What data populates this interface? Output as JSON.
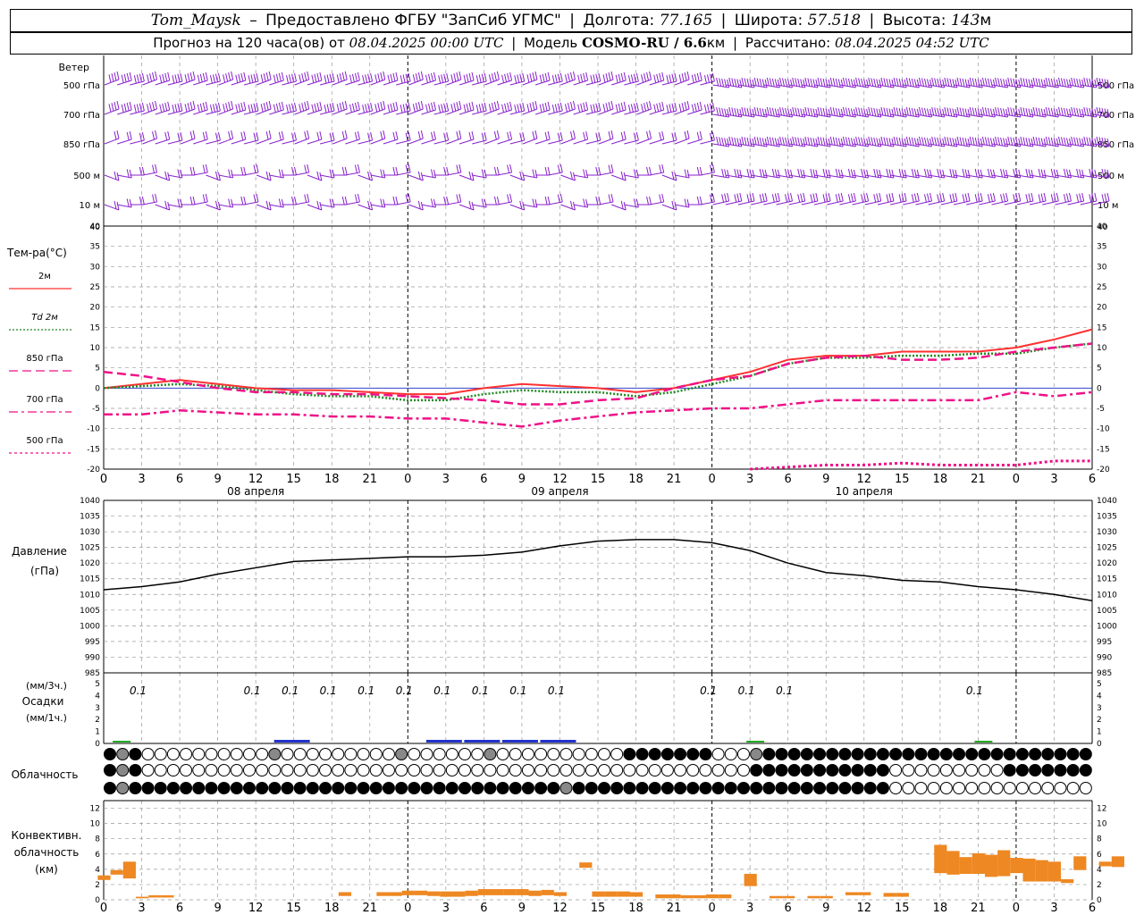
{
  "header": {
    "station": "Tom_Maysk",
    "dash": "–",
    "provider": "Предоставлено ФГБУ \"ЗапСиб УГМС\"",
    "lon_label": "Долгота:",
    "lon": "77.165",
    "lat_label": "Широта:",
    "lat": "57.518",
    "alt_label": "Высота:",
    "alt": "143",
    "alt_unit": "м",
    "forecast_prefix": "Прогноз на 120 часа(ов) от",
    "forecast_start": "08.04.2025 00:00 UTC",
    "model_label": "Модель",
    "model": "COSMO-RU / 6.6",
    "model_unit": "км",
    "calc_label": "Рассчитано:",
    "calc_time": "08.04.2025 04:52 UTC"
  },
  "colors": {
    "wind": "#8822cc",
    "t2m": "#ff3030",
    "td2m": "#228822",
    "t850": "#ee1188",
    "t700": "#ee1188",
    "t500": "#ee1188",
    "pressure": "#000000",
    "precip_3h": "#2233cc",
    "precip_1h": "#22aa22",
    "convective": "#ee8822",
    "grid": "#999999",
    "zero_line": "#3344cc"
  },
  "time_axis": {
    "hour_labels": [
      "0",
      "3",
      "6",
      "9",
      "12",
      "15",
      "18",
      "21",
      "0",
      "3",
      "6",
      "9",
      "12",
      "15",
      "18",
      "21",
      "0",
      "3",
      "6",
      "9",
      "12",
      "15",
      "18",
      "21",
      "0",
      "3",
      "6"
    ],
    "day_labels": [
      "08 апреля",
      "09 апреля",
      "10 апреля"
    ]
  },
  "chart_data": [
    {
      "type": "wind_barbs",
      "title": "Ветер",
      "levels": [
        "500 гПа",
        "700 гПа",
        "850 гПа",
        "500 м",
        "10 м"
      ],
      "scale_end_label": "40"
    },
    {
      "type": "line",
      "ylabel": "Тем-ра(°C)",
      "ylim": [
        -20,
        40
      ],
      "yticks": [
        40,
        35,
        30,
        25,
        20,
        15,
        10,
        5,
        0,
        -5,
        -10,
        -15,
        -20
      ],
      "x_hours": [
        0,
        3,
        6,
        9,
        12,
        15,
        18,
        21,
        24,
        27,
        30,
        33,
        36,
        39,
        42,
        45,
        48,
        51,
        54,
        57,
        60,
        63,
        66,
        69,
        72,
        75,
        78
      ],
      "series": [
        {
          "name": "2м",
          "style": "solid",
          "values": [
            0,
            1,
            2,
            1,
            0,
            -0.5,
            -0.5,
            -1,
            -1.5,
            -1.5,
            0,
            1,
            0.5,
            0,
            -1,
            0,
            2,
            4,
            7,
            8,
            8,
            9,
            9,
            9,
            10,
            12,
            14.5
          ]
        },
        {
          "name": "Td 2м",
          "style": "dotted",
          "values": [
            0,
            0.5,
            1,
            0.5,
            -0.5,
            -1.5,
            -2,
            -2,
            -3,
            -3,
            -1.5,
            -0.5,
            -1,
            -1,
            -2,
            -1,
            1,
            3,
            6,
            7.5,
            7.5,
            8,
            8,
            8.5,
            8.5,
            10,
            11
          ]
        },
        {
          "name": "850 гПа",
          "style": "dashed",
          "values": [
            4,
            3,
            1.5,
            0,
            -1,
            -1,
            -1.5,
            -1.5,
            -2,
            -2.5,
            -3,
            -4,
            -4,
            -3,
            -2.5,
            0,
            2,
            3,
            6,
            7.5,
            8,
            7,
            7,
            7.5,
            9,
            10,
            11
          ]
        },
        {
          "name": "700 гПа",
          "style": "dashdot",
          "values": [
            -6.5,
            -6.5,
            -5.5,
            -6,
            -6.5,
            -6.5,
            -7,
            -7,
            -7.5,
            -7.5,
            -8.5,
            -9.5,
            -8,
            -7,
            -6,
            -5.5,
            -5,
            -5,
            -4,
            -3,
            -3,
            -3,
            -3,
            -3,
            -1,
            -2,
            -1
          ]
        },
        {
          "name": "500 гПа",
          "style": "dotted",
          "x_hours": [
            51,
            54,
            57,
            60,
            63,
            66,
            69,
            72,
            75,
            78
          ],
          "values": [
            -20,
            -19.5,
            -19,
            -19,
            -18.5,
            -19,
            -19,
            -19,
            -18,
            -18
          ]
        }
      ]
    },
    {
      "type": "line",
      "ylabel": "Давление",
      "yunit": "(гПа)",
      "ylim": [
        985,
        1040
      ],
      "yticks": [
        1040,
        1035,
        1030,
        1025,
        1020,
        1015,
        1010,
        1005,
        1000,
        995,
        990,
        985
      ],
      "x_hours": [
        0,
        3,
        6,
        9,
        12,
        15,
        18,
        21,
        24,
        27,
        30,
        33,
        36,
        39,
        42,
        45,
        48,
        51,
        54,
        57,
        60,
        63,
        66,
        69,
        72,
        75,
        78
      ],
      "series": [
        {
          "name": "Давление",
          "values": [
            1011.5,
            1012.5,
            1014,
            1016.5,
            1018.5,
            1020.5,
            1021,
            1021.5,
            1022,
            1022,
            1022.5,
            1023.5,
            1025.5,
            1027,
            1027.5,
            1027.5,
            1026.5,
            1024,
            1020,
            1017,
            1016,
            1014.5,
            1014,
            1012.5,
            1011.5,
            1010,
            1008
          ]
        }
      ]
    },
    {
      "type": "bar",
      "ylabel_3h": "(мм/3ч.)",
      "ylabel": "Осадки",
      "ylabel_1h": "(мм/1ч.)",
      "ylim": [
        0,
        5
      ],
      "yticks": [
        5,
        4,
        3,
        2,
        1,
        0
      ],
      "value_labels": [
        {
          "hour": 3,
          "text": "0.1"
        },
        {
          "hour": 12,
          "text": "0.1"
        },
        {
          "hour": 15,
          "text": "0.1"
        },
        {
          "hour": 18,
          "text": "0.1"
        },
        {
          "hour": 21,
          "text": "0.1"
        },
        {
          "hour": 24,
          "text": "0.1"
        },
        {
          "hour": 27,
          "text": "0.1"
        },
        {
          "hour": 30,
          "text": "0.1"
        },
        {
          "hour": 33,
          "text": "0.1"
        },
        {
          "hour": 36,
          "text": "0.1"
        },
        {
          "hour": 48,
          "text": "0.1"
        },
        {
          "hour": 51,
          "text": "0.1"
        },
        {
          "hour": 54,
          "text": "0.1"
        },
        {
          "hour": 69,
          "text": "0.1"
        }
      ],
      "series": [
        {
          "name": "3ч",
          "hours": [
            15,
            27,
            30,
            33,
            36
          ],
          "values": [
            0.1,
            0.1,
            0.1,
            0.1,
            0.1
          ]
        },
        {
          "name": "1ч",
          "hours": [
            1,
            51,
            69
          ],
          "values": [
            0.05,
            0.1,
            0.05
          ]
        }
      ]
    },
    {
      "type": "cloud_symbols",
      "title": "Облачность",
      "rows": 3
    },
    {
      "type": "bar",
      "ylabel": [
        "Конвективн.",
        "облачность",
        "(км)"
      ],
      "ylim": [
        0,
        13
      ],
      "yticks": [
        12,
        10,
        8,
        6,
        4,
        2,
        0
      ],
      "bars": [
        {
          "h": 0,
          "lo": 2.6,
          "hi": 3.2
        },
        {
          "h": 1,
          "lo": 3.3,
          "hi": 3.9
        },
        {
          "h": 2,
          "lo": 2.8,
          "hi": 5.0
        },
        {
          "h": 3,
          "lo": 0.2,
          "hi": 0.4
        },
        {
          "h": 4,
          "lo": 0.3,
          "hi": 0.6
        },
        {
          "h": 5,
          "lo": 0.3,
          "hi": 0.6
        },
        {
          "h": 19,
          "lo": 0.5,
          "hi": 1.0
        },
        {
          "h": 22,
          "lo": 0.5,
          "hi": 1.0
        },
        {
          "h": 23,
          "lo": 0.5,
          "hi": 1.0
        },
        {
          "h": 24,
          "lo": 0.6,
          "hi": 1.2
        },
        {
          "h": 25,
          "lo": 0.6,
          "hi": 1.2
        },
        {
          "h": 26,
          "lo": 0.5,
          "hi": 1.1
        },
        {
          "h": 27,
          "lo": 0.4,
          "hi": 1.1
        },
        {
          "h": 28,
          "lo": 0.4,
          "hi": 1.1
        },
        {
          "h": 29,
          "lo": 0.5,
          "hi": 1.2
        },
        {
          "h": 30,
          "lo": 0.6,
          "hi": 1.4
        },
        {
          "h": 31,
          "lo": 0.6,
          "hi": 1.4
        },
        {
          "h": 32,
          "lo": 0.6,
          "hi": 1.4
        },
        {
          "h": 33,
          "lo": 0.6,
          "hi": 1.4
        },
        {
          "h": 34,
          "lo": 0.5,
          "hi": 1.2
        },
        {
          "h": 35,
          "lo": 0.6,
          "hi": 1.3
        },
        {
          "h": 36,
          "lo": 0.5,
          "hi": 1.0
        },
        {
          "h": 38,
          "lo": 4.2,
          "hi": 4.9
        },
        {
          "h": 39,
          "lo": 0.4,
          "hi": 1.1
        },
        {
          "h": 40,
          "lo": 0.4,
          "hi": 1.1
        },
        {
          "h": 41,
          "lo": 0.4,
          "hi": 1.1
        },
        {
          "h": 42,
          "lo": 0.4,
          "hi": 1.0
        },
        {
          "h": 44,
          "lo": 0.2,
          "hi": 0.7
        },
        {
          "h": 45,
          "lo": 0.2,
          "hi": 0.7
        },
        {
          "h": 46,
          "lo": 0.2,
          "hi": 0.6
        },
        {
          "h": 47,
          "lo": 0.2,
          "hi": 0.6
        },
        {
          "h": 48,
          "lo": 0.2,
          "hi": 0.7
        },
        {
          "h": 49,
          "lo": 0.2,
          "hi": 0.7
        },
        {
          "h": 51,
          "lo": 1.8,
          "hi": 3.4
        },
        {
          "h": 53,
          "lo": 0.2,
          "hi": 0.5
        },
        {
          "h": 54,
          "lo": 0.2,
          "hi": 0.5
        },
        {
          "h": 56,
          "lo": 0.2,
          "hi": 0.5
        },
        {
          "h": 57,
          "lo": 0.2,
          "hi": 0.5
        },
        {
          "h": 59,
          "lo": 0.6,
          "hi": 1.0
        },
        {
          "h": 60,
          "lo": 0.6,
          "hi": 1.0
        },
        {
          "h": 62,
          "lo": 0.4,
          "hi": 0.9
        },
        {
          "h": 63,
          "lo": 0.4,
          "hi": 0.9
        },
        {
          "h": 66,
          "lo": 3.5,
          "hi": 7.2
        },
        {
          "h": 67,
          "lo": 3.3,
          "hi": 6.4
        },
        {
          "h": 68,
          "lo": 3.4,
          "hi": 5.6
        },
        {
          "h": 69,
          "lo": 3.4,
          "hi": 6.1
        },
        {
          "h": 70,
          "lo": 3.0,
          "hi": 5.9
        },
        {
          "h": 71,
          "lo": 3.1,
          "hi": 6.5
        },
        {
          "h": 72,
          "lo": 3.5,
          "hi": 5.5
        },
        {
          "h": 73,
          "lo": 2.4,
          "hi": 5.4
        },
        {
          "h": 74,
          "lo": 2.4,
          "hi": 5.2
        },
        {
          "h": 75,
          "lo": 2.4,
          "hi": 5.0
        },
        {
          "h": 76,
          "lo": 2.2,
          "hi": 2.7
        },
        {
          "h": 77,
          "lo": 3.9,
          "hi": 5.7
        },
        {
          "h": 79,
          "lo": 4.4,
          "hi": 5.0
        },
        {
          "h": 80,
          "lo": 4.3,
          "hi": 5.7
        }
      ]
    }
  ]
}
